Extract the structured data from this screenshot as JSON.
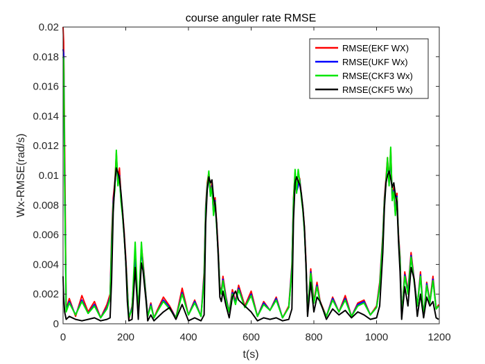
{
  "chart_data": {
    "type": "line",
    "title": "course anguler rate RMSE",
    "xlabel": "t(s)",
    "ylabel": "Wx-RMSE(rad/s)",
    "xlim": [
      0,
      1200
    ],
    "ylim": [
      0,
      0.02
    ],
    "xticks": [
      0,
      200,
      400,
      600,
      800,
      1000,
      1200
    ],
    "xtick_labels": [
      "0",
      "200",
      "400",
      "600",
      "800",
      "1000",
      "1200"
    ],
    "yticks": [
      0,
      0.002,
      0.004,
      0.006,
      0.008,
      0.01,
      0.012,
      0.014,
      0.016,
      0.018,
      0.02
    ],
    "ytick_labels": [
      "0",
      "0.002",
      "0.004",
      "0.006",
      "0.008",
      "0.01",
      "0.012",
      "0.014",
      "0.016",
      "0.018",
      "0.02"
    ],
    "grid": false,
    "legend_position": "top-right",
    "series": [
      {
        "name": "RMSE(EKF WX)",
        "color": "#ff0000",
        "x": [
          0,
          2,
          5,
          10,
          20,
          40,
          60,
          80,
          100,
          120,
          140,
          150,
          155,
          160,
          165,
          170,
          175,
          180,
          185,
          190,
          195,
          200,
          205,
          210,
          220,
          230,
          240,
          250,
          255,
          260,
          265,
          270,
          280,
          290,
          300,
          320,
          340,
          360,
          380,
          400,
          420,
          440,
          450,
          455,
          460,
          465,
          470,
          475,
          480,
          485,
          490,
          495,
          500,
          505,
          510,
          520,
          530,
          540,
          550,
          560,
          580,
          600,
          620,
          640,
          660,
          680,
          700,
          720,
          730,
          735,
          740,
          745,
          750,
          755,
          760,
          765,
          770,
          775,
          780,
          790,
          800,
          810,
          820,
          840,
          860,
          880,
          900,
          920,
          940,
          960,
          980,
          1000,
          1010,
          1020,
          1025,
          1030,
          1035,
          1040,
          1045,
          1050,
          1055,
          1060,
          1065,
          1070,
          1075,
          1080,
          1090,
          1100,
          1110,
          1120,
          1130,
          1140,
          1150,
          1160,
          1170,
          1180,
          1190,
          1198
        ],
        "y": [
          0.02,
          0.019,
          0.012,
          0.001,
          0.0017,
          0.0005,
          0.0019,
          0.0008,
          0.0015,
          0.0004,
          0.0013,
          0.002,
          0.006,
          0.0085,
          0.0095,
          0.0115,
          0.0095,
          0.0105,
          0.0085,
          0.0075,
          0.0062,
          0.0045,
          0.0025,
          0.0003,
          0.0012,
          0.0045,
          0.0005,
          0.0052,
          0.0042,
          0.003,
          0.0018,
          0.0005,
          0.0014,
          0.0004,
          0.0009,
          0.0018,
          0.0012,
          0.0004,
          0.0024,
          0.0006,
          0.0016,
          0.0005,
          0.0035,
          0.008,
          0.0095,
          0.0102,
          0.0088,
          0.0095,
          0.0075,
          0.0085,
          0.0068,
          0.005,
          0.0025,
          0.0022,
          0.0032,
          0.0018,
          0.0008,
          0.0023,
          0.0015,
          0.0026,
          0.0012,
          0.0022,
          0.0005,
          0.0015,
          0.0009,
          0.0018,
          0.0004,
          0.0012,
          0.004,
          0.0085,
          0.0102,
          0.009,
          0.0095,
          0.0098,
          0.0087,
          0.0078,
          0.0065,
          0.0042,
          0.0008,
          0.0037,
          0.0015,
          0.0028,
          0.0015,
          0.0005,
          0.0018,
          0.0008,
          0.0019,
          0.0005,
          0.0014,
          0.0016,
          0.0006,
          0.0012,
          0.0028,
          0.006,
          0.0085,
          0.0098,
          0.0112,
          0.0095,
          0.0118,
          0.0085,
          0.0092,
          0.0075,
          0.0088,
          0.006,
          0.0045,
          0.0005,
          0.0035,
          0.0022,
          0.0048,
          0.003,
          0.0012,
          0.0035,
          0.0005,
          0.0028,
          0.0015,
          0.0032,
          0.001,
          0.0013
        ]
      },
      {
        "name": "RMSE(UKF Wx)",
        "color": "#0000ff",
        "x": [
          0,
          2,
          5,
          10,
          20,
          40,
          60,
          80,
          100,
          120,
          140,
          150,
          155,
          160,
          165,
          170,
          175,
          180,
          185,
          190,
          195,
          200,
          205,
          210,
          220,
          230,
          240,
          250,
          255,
          260,
          265,
          270,
          280,
          290,
          300,
          320,
          340,
          360,
          380,
          400,
          420,
          440,
          450,
          455,
          460,
          465,
          470,
          475,
          480,
          485,
          490,
          495,
          500,
          505,
          510,
          520,
          530,
          540,
          550,
          560,
          580,
          600,
          620,
          640,
          660,
          680,
          700,
          720,
          730,
          735,
          740,
          745,
          750,
          755,
          760,
          765,
          770,
          775,
          780,
          790,
          800,
          810,
          820,
          840,
          860,
          880,
          900,
          920,
          940,
          960,
          980,
          1000,
          1010,
          1020,
          1025,
          1030,
          1035,
          1040,
          1045,
          1050,
          1055,
          1060,
          1065,
          1070,
          1075,
          1080,
          1090,
          1100,
          1110,
          1120,
          1130,
          1140,
          1150,
          1160,
          1170,
          1180,
          1190,
          1198
        ],
        "y": [
          0.0185,
          0.0182,
          0.01,
          0.0009,
          0.0015,
          0.0006,
          0.0016,
          0.0007,
          0.0013,
          0.0004,
          0.0011,
          0.0018,
          0.0055,
          0.0082,
          0.0092,
          0.011,
          0.0094,
          0.01,
          0.0083,
          0.0073,
          0.006,
          0.0043,
          0.0023,
          0.0004,
          0.0011,
          0.0043,
          0.0006,
          0.005,
          0.004,
          0.0029,
          0.0017,
          0.0005,
          0.0013,
          0.0004,
          0.0008,
          0.0016,
          0.0011,
          0.0004,
          0.0021,
          0.0006,
          0.0015,
          0.0005,
          0.0032,
          0.0078,
          0.0093,
          0.01,
          0.0087,
          0.0093,
          0.0074,
          0.0083,
          0.0066,
          0.0048,
          0.0024,
          0.0021,
          0.003,
          0.0017,
          0.0008,
          0.0021,
          0.0014,
          0.0024,
          0.0011,
          0.002,
          0.0005,
          0.0014,
          0.0009,
          0.0017,
          0.0004,
          0.0011,
          0.0038,
          0.0083,
          0.01,
          0.0089,
          0.0093,
          0.0097,
          0.0086,
          0.0077,
          0.0063,
          0.004,
          0.0008,
          0.0035,
          0.0014,
          0.0026,
          0.0014,
          0.0005,
          0.0017,
          0.0008,
          0.0017,
          0.0005,
          0.0013,
          0.0015,
          0.0006,
          0.0011,
          0.0026,
          0.0058,
          0.0083,
          0.0096,
          0.011,
          0.0094,
          0.0115,
          0.0084,
          0.009,
          0.0074,
          0.0086,
          0.0058,
          0.0043,
          0.0005,
          0.0033,
          0.0021,
          0.0046,
          0.0029,
          0.0012,
          0.0033,
          0.0005,
          0.0027,
          0.0014,
          0.003,
          0.001,
          0.0012
        ]
      },
      {
        "name": "RMSE(CKF3 Wx)",
        "color": "#00e600",
        "x": [
          0,
          2,
          5,
          10,
          20,
          40,
          60,
          80,
          100,
          120,
          140,
          150,
          155,
          160,
          165,
          170,
          175,
          180,
          185,
          190,
          195,
          200,
          205,
          210,
          220,
          230,
          240,
          250,
          255,
          260,
          265,
          270,
          280,
          290,
          300,
          320,
          340,
          360,
          380,
          400,
          420,
          440,
          450,
          455,
          460,
          465,
          470,
          475,
          480,
          485,
          490,
          495,
          500,
          505,
          510,
          520,
          530,
          540,
          550,
          560,
          580,
          600,
          620,
          640,
          660,
          680,
          700,
          720,
          730,
          735,
          740,
          745,
          750,
          755,
          760,
          765,
          770,
          775,
          780,
          790,
          800,
          810,
          820,
          840,
          860,
          880,
          900,
          920,
          940,
          960,
          980,
          1000,
          1010,
          1020,
          1025,
          1030,
          1035,
          1040,
          1045,
          1050,
          1055,
          1060,
          1065,
          1070,
          1075,
          1080,
          1090,
          1100,
          1110,
          1120,
          1130,
          1140,
          1150,
          1160,
          1170,
          1180,
          1190,
          1198
        ],
        "y": [
          0.018,
          0.0178,
          0.0095,
          0.0008,
          0.0014,
          0.0006,
          0.0015,
          0.0007,
          0.0012,
          0.0004,
          0.001,
          0.0017,
          0.0052,
          0.008,
          0.009,
          0.0117,
          0.0093,
          0.0099,
          0.0082,
          0.0072,
          0.0059,
          0.0042,
          0.0022,
          0.0004,
          0.001,
          0.0055,
          0.0006,
          0.0055,
          0.0039,
          0.0028,
          0.0016,
          0.0005,
          0.0012,
          0.0004,
          0.0008,
          0.0015,
          0.001,
          0.0004,
          0.002,
          0.0006,
          0.0014,
          0.0005,
          0.003,
          0.0076,
          0.0092,
          0.0103,
          0.0086,
          0.0092,
          0.0073,
          0.0082,
          0.0065,
          0.0047,
          0.0024,
          0.002,
          0.0029,
          0.0016,
          0.0008,
          0.002,
          0.0013,
          0.0023,
          0.0011,
          0.0019,
          0.0005,
          0.0013,
          0.0009,
          0.0016,
          0.0004,
          0.0011,
          0.0036,
          0.0082,
          0.0104,
          0.0088,
          0.0104,
          0.0096,
          0.0085,
          0.0076,
          0.0062,
          0.0039,
          0.0008,
          0.0034,
          0.0014,
          0.0025,
          0.0014,
          0.0005,
          0.0016,
          0.0008,
          0.0016,
          0.0005,
          0.0012,
          0.0014,
          0.0006,
          0.0011,
          0.0025,
          0.0057,
          0.0082,
          0.0095,
          0.0112,
          0.0093,
          0.0119,
          0.0083,
          0.0089,
          0.0073,
          0.0085,
          0.0057,
          0.0042,
          0.0005,
          0.0032,
          0.002,
          0.0045,
          0.0028,
          0.0012,
          0.0032,
          0.0005,
          0.0026,
          0.0014,
          0.0029,
          0.001,
          0.0012
        ]
      },
      {
        "name": "RMSE(CKF5 Wx)",
        "color": "#000000",
        "x": [
          0,
          2,
          5,
          10,
          20,
          40,
          60,
          80,
          100,
          120,
          140,
          150,
          155,
          160,
          165,
          170,
          175,
          180,
          185,
          190,
          195,
          200,
          205,
          210,
          220,
          230,
          240,
          250,
          255,
          260,
          265,
          270,
          280,
          290,
          300,
          320,
          340,
          360,
          380,
          400,
          420,
          440,
          450,
          455,
          460,
          465,
          470,
          475,
          480,
          485,
          490,
          495,
          500,
          505,
          510,
          520,
          530,
          540,
          550,
          560,
          580,
          600,
          620,
          640,
          660,
          680,
          700,
          720,
          730,
          735,
          740,
          745,
          750,
          755,
          760,
          765,
          770,
          775,
          780,
          790,
          800,
          810,
          820,
          840,
          860,
          880,
          900,
          920,
          940,
          960,
          980,
          1000,
          1010,
          1020,
          1025,
          1030,
          1035,
          1040,
          1045,
          1050,
          1055,
          1060,
          1065,
          1070,
          1075,
          1080,
          1090,
          1100,
          1110,
          1120,
          1130,
          1140,
          1150,
          1160,
          1170,
          1180,
          1190,
          1198
        ],
        "y": [
          0.0032,
          0.0018,
          0.0008,
          0.0003,
          0.0005,
          0.0003,
          0.0002,
          0.0003,
          0.0004,
          0.0002,
          0.0003,
          0.0004,
          0.003,
          0.0075,
          0.0095,
          0.0105,
          0.0102,
          0.0098,
          0.0088,
          0.0075,
          0.006,
          0.0042,
          0.0015,
          0.0002,
          0.0003,
          0.0038,
          0.0003,
          0.0041,
          0.0036,
          0.0025,
          0.0015,
          0.0002,
          0.0006,
          0.0002,
          0.0004,
          0.0008,
          0.0011,
          0.0003,
          0.0013,
          0.0002,
          0.0004,
          0.0002,
          0.0006,
          0.0068,
          0.009,
          0.0099,
          0.0095,
          0.0097,
          0.0085,
          0.008,
          0.0068,
          0.0045,
          0.0018,
          0.0015,
          0.0022,
          0.0012,
          0.0004,
          0.0018,
          0.0022,
          0.0016,
          0.0012,
          0.0008,
          0.0002,
          0.0004,
          0.0003,
          0.0004,
          0.0002,
          0.0003,
          0.001,
          0.007,
          0.0095,
          0.0099,
          0.0096,
          0.0094,
          0.0088,
          0.0078,
          0.0065,
          0.0038,
          0.0005,
          0.0028,
          0.0008,
          0.0018,
          0.0015,
          0.0003,
          0.001,
          0.0006,
          0.0009,
          0.0004,
          0.0008,
          0.0006,
          0.0003,
          0.0004,
          0.0012,
          0.0048,
          0.0078,
          0.0095,
          0.01,
          0.0103,
          0.0098,
          0.0092,
          0.0095,
          0.0087,
          0.0082,
          0.0055,
          0.0035,
          0.0003,
          0.0025,
          0.0012,
          0.0038,
          0.003,
          0.0005,
          0.002,
          0.0004,
          0.0018,
          0.0012,
          0.0015,
          0.0004,
          0.0003
        ]
      }
    ]
  }
}
